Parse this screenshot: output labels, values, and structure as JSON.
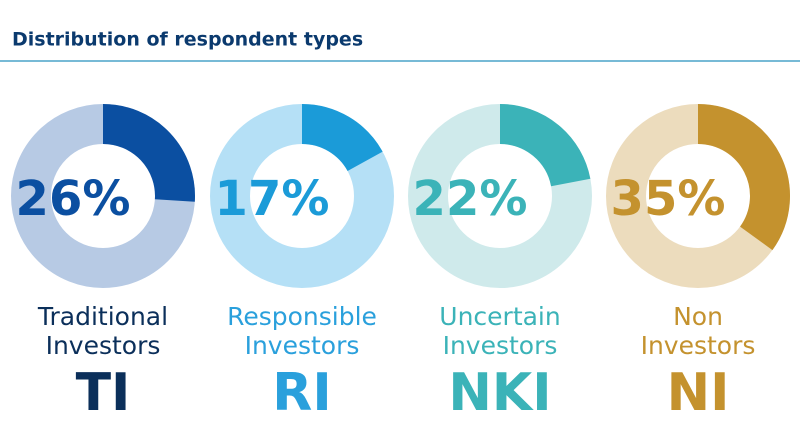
{
  "title": "Distribution of respondent types",
  "chart_data": [
    {
      "type": "donut",
      "values": [
        26
      ],
      "value_labels": [
        "26%"
      ],
      "label_lines": [
        "Traditional",
        "Investors"
      ],
      "abbr": "TI",
      "color": "#0b4fa1",
      "track_color": "#b7cae4",
      "text_color": "#0b2f5a"
    },
    {
      "type": "donut",
      "values": [
        17
      ],
      "value_labels": [
        "17%"
      ],
      "label_lines": [
        "Responsible",
        "Investors"
      ],
      "abbr": "RI",
      "color": "#1b9bd8",
      "track_color": "#b5e0f6",
      "text_color": "#2aa0dc"
    },
    {
      "type": "donut",
      "values": [
        22
      ],
      "value_labels": [
        "22%"
      ],
      "label_lines": [
        "Uncertain",
        "Investors"
      ],
      "abbr": "NKI",
      "color": "#3bb3b8",
      "track_color": "#cfeaeb",
      "text_color": "#3bb3b8"
    },
    {
      "type": "donut",
      "values": [
        35
      ],
      "value_labels": [
        "35%"
      ],
      "label_lines": [
        "Non",
        "Investors"
      ],
      "abbr": "NI",
      "color": "#c4922e",
      "track_color": "#ecdcbd",
      "text_color": "#c4922e"
    }
  ]
}
